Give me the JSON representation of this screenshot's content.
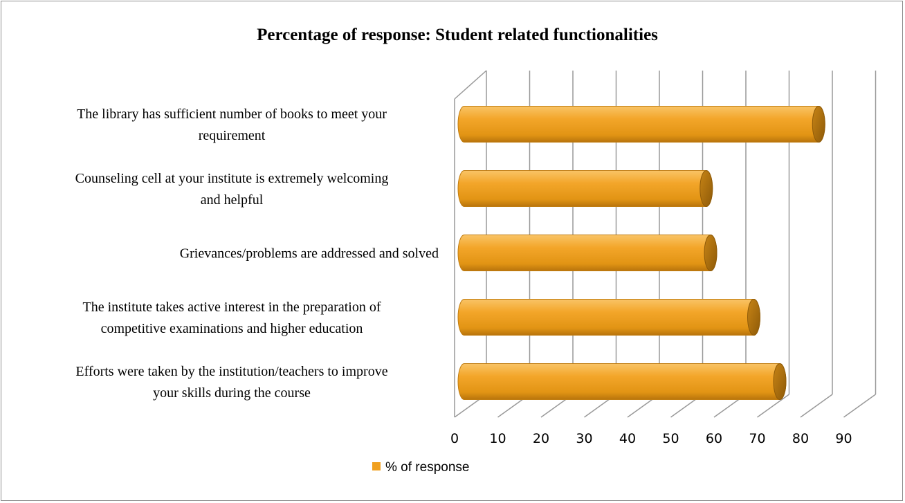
{
  "chart_data": {
    "type": "bar",
    "orientation": "horizontal",
    "style": "3d-cylinder",
    "title": "Percentage of response: Student related functionalities",
    "categories": [
      [
        "The library has sufficient number of books to meet your",
        "requirement"
      ],
      [
        "Counseling cell at your institute is extremely welcoming",
        "and helpful"
      ],
      [
        "Grievances/problems are addressed and solved"
      ],
      [
        "The institute takes active interest in the preparation of",
        "competitive examinations and higher education"
      ],
      [
        "Efforts were taken by the institution/teachers to improve",
        "your skills during the course"
      ]
    ],
    "series": [
      {
        "name": "% of response",
        "values": [
          81,
          55,
          56,
          66,
          72
        ],
        "color": "#f0a020"
      }
    ],
    "xlim": [
      0,
      90
    ],
    "xticks": [
      "0",
      "10",
      "20",
      "30",
      "40",
      "50",
      "60",
      "70",
      "80",
      "90"
    ],
    "grid": true,
    "legend": "bottom"
  }
}
